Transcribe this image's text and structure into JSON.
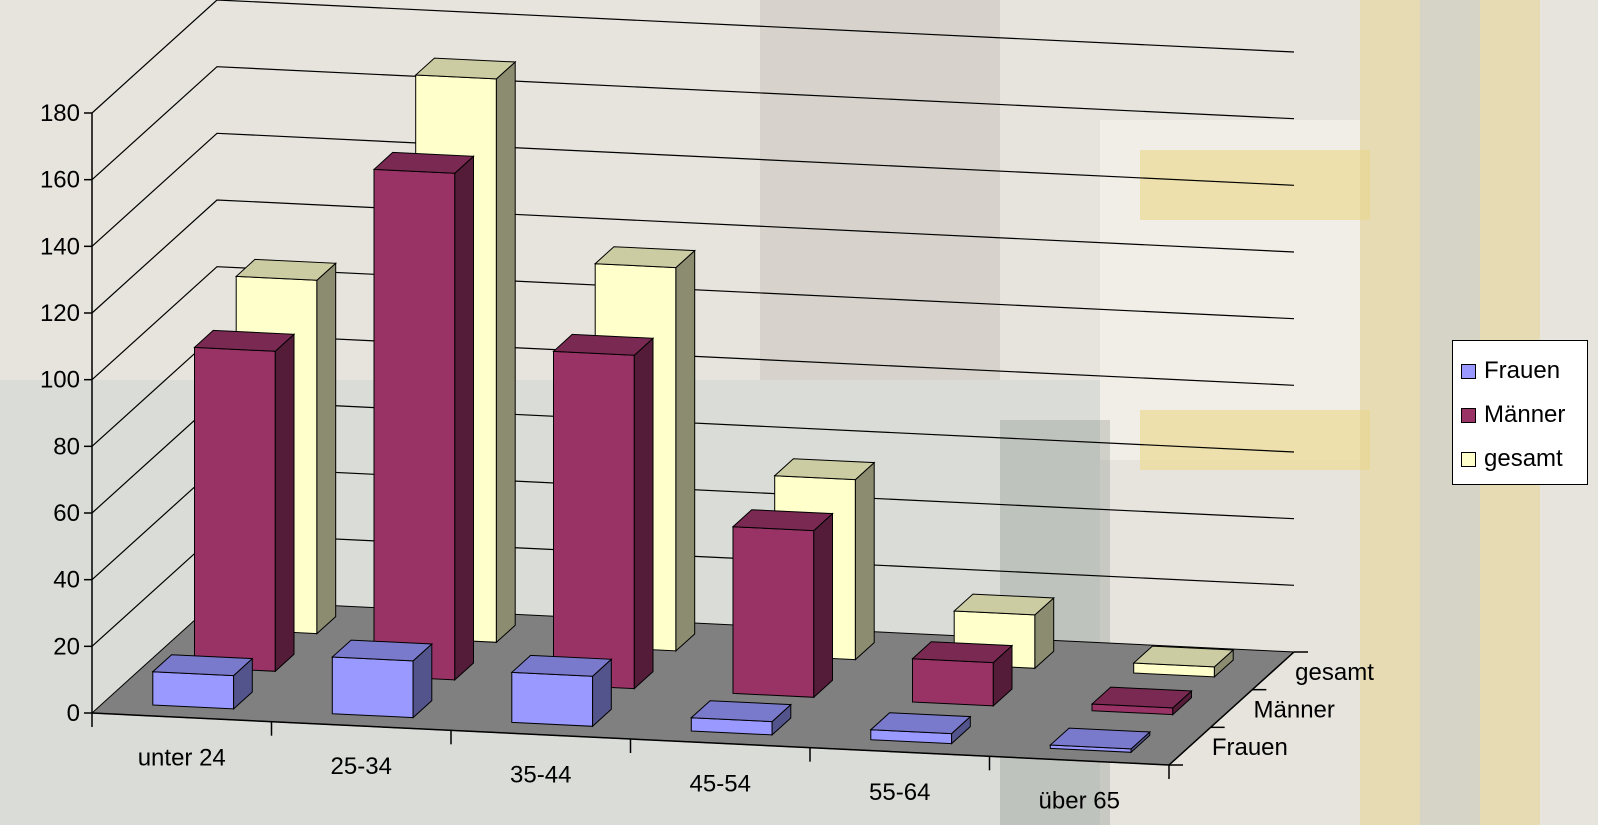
{
  "chart_data": {
    "type": "bar",
    "subtype": "3d-column-clustered-depth",
    "categories": [
      "unter 24",
      "25-34",
      "35-44",
      "45-54",
      "55-64",
      "über 65"
    ],
    "series": [
      {
        "name": "Frauen",
        "values": [
          10,
          17,
          15,
          4,
          3,
          1
        ],
        "color": "#9999ff"
      },
      {
        "name": "Männer",
        "values": [
          96,
          152,
          100,
          50,
          13,
          2
        ],
        "color": "#993366"
      },
      {
        "name": "gesamt",
        "values": [
          106,
          169,
          115,
          54,
          16,
          3
        ],
        "color": "#ffffcc"
      }
    ],
    "yticks": [
      "0",
      "20",
      "40",
      "60",
      "80",
      "100",
      "120",
      "140",
      "160",
      "180"
    ],
    "ylim": [
      0,
      180
    ],
    "grid": true,
    "floor_color": "#808080",
    "legend": {
      "position": "right",
      "items": [
        {
          "label": "Frauen",
          "color": "#9999ff"
        },
        {
          "label": "Männer",
          "color": "#993366"
        },
        {
          "label": "gesamt",
          "color": "#ffffcc"
        }
      ]
    },
    "depth_labels": [
      "gesamt",
      "Männer",
      "Frauen"
    ]
  }
}
